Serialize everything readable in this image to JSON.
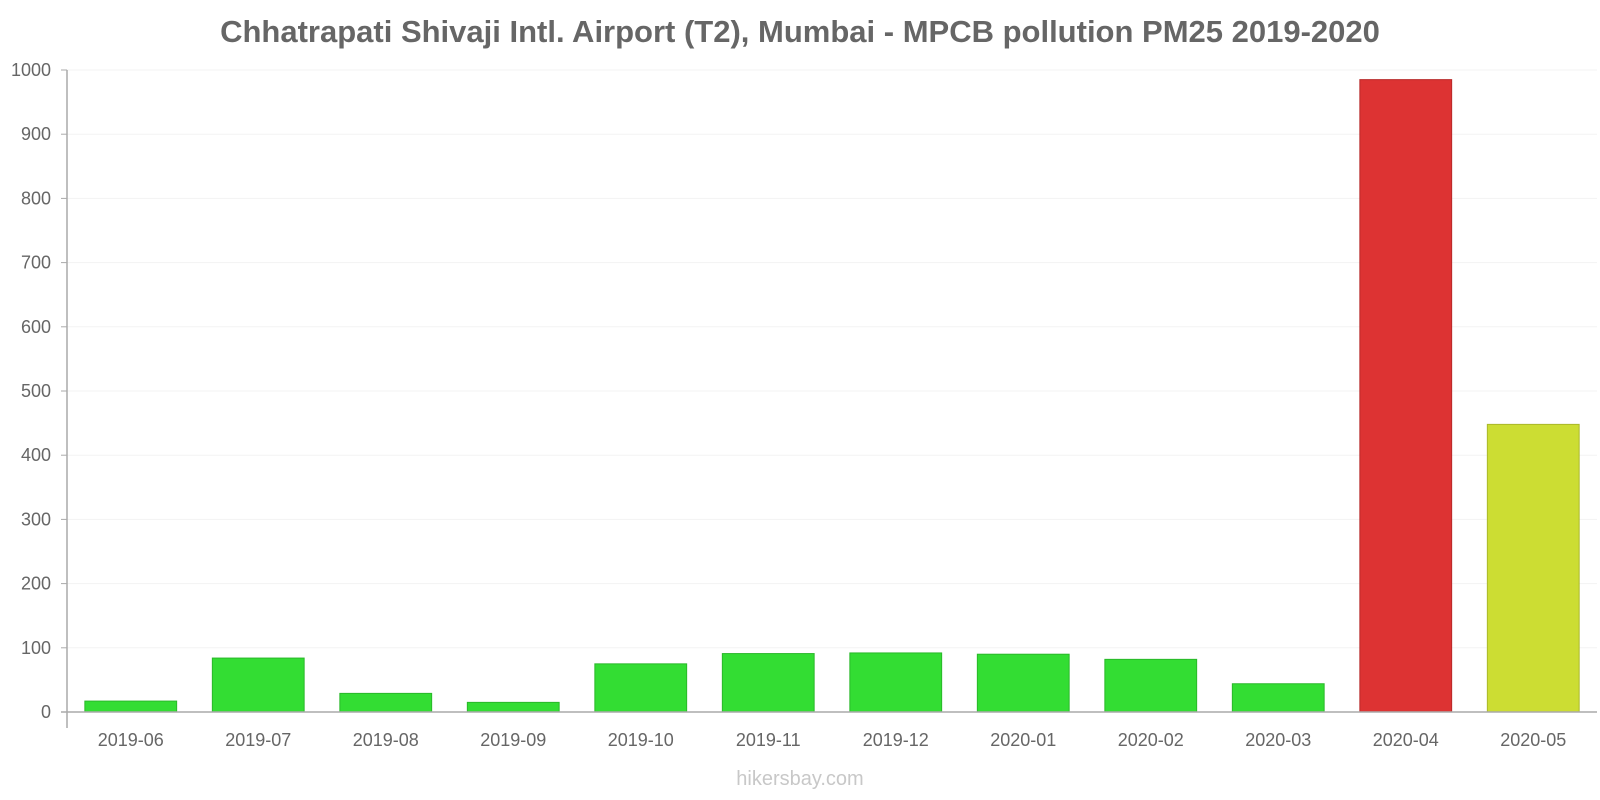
{
  "chart_data": {
    "type": "bar",
    "title": "Chhatrapati Shivaji Intl. Airport (T2), Mumbai - MPCB pollution PM25 2019-2020",
    "xlabel": "",
    "ylabel": "",
    "ylim": [
      0,
      1000
    ],
    "yticks": [
      "0",
      "100",
      "200",
      "300",
      "400",
      "500",
      "600",
      "700",
      "800",
      "900",
      "1000"
    ],
    "grid": true,
    "categories": [
      "2019-06",
      "2019-07",
      "2019-08",
      "2019-09",
      "2019-10",
      "2019-11",
      "2019-12",
      "2020-01",
      "2020-02",
      "2020-03",
      "2020-04",
      "2020-05"
    ],
    "values": [
      17,
      84,
      29,
      15,
      75,
      91,
      92,
      90,
      82,
      44,
      985,
      448
    ],
    "bar_colors": [
      "#33dd33",
      "#33dd33",
      "#33dd33",
      "#33dd33",
      "#33dd33",
      "#33dd33",
      "#33dd33",
      "#33dd33",
      "#33dd33",
      "#33dd33",
      "#dd3333",
      "#ccdd33"
    ],
    "bar_stroke_colors": [
      "#29b829",
      "#29b829",
      "#29b829",
      "#29b829",
      "#29b829",
      "#29b829",
      "#29b829",
      "#29b829",
      "#29b829",
      "#29b829",
      "#b82929",
      "#aab829"
    ]
  },
  "watermark": "hikersbay.com"
}
